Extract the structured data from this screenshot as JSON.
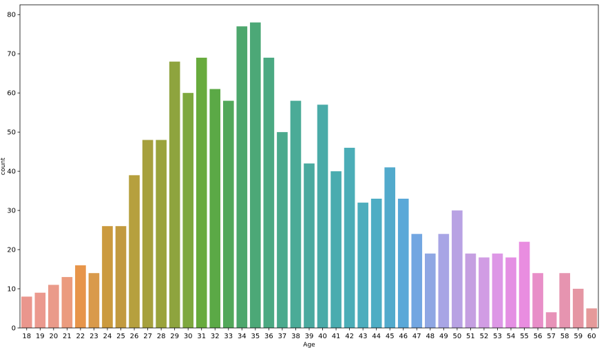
{
  "chart_data": {
    "type": "bar",
    "xlabel": "Age",
    "ylabel": "count",
    "ylim": [
      0,
      82.5
    ],
    "yticks": [
      0,
      10,
      20,
      30,
      40,
      50,
      60,
      70,
      80
    ],
    "grid": false,
    "legend": "none",
    "categories": [
      "18",
      "19",
      "20",
      "21",
      "22",
      "23",
      "24",
      "25",
      "26",
      "27",
      "28",
      "29",
      "30",
      "31",
      "32",
      "33",
      "34",
      "35",
      "36",
      "37",
      "38",
      "39",
      "40",
      "41",
      "42",
      "43",
      "44",
      "45",
      "46",
      "47",
      "48",
      "49",
      "50",
      "51",
      "52",
      "53",
      "54",
      "55",
      "56",
      "57",
      "58",
      "59",
      "60"
    ],
    "values": [
      8,
      9,
      11,
      13,
      16,
      14,
      26,
      26,
      39,
      48,
      48,
      68,
      60,
      69,
      61,
      58,
      77,
      78,
      69,
      50,
      58,
      42,
      57,
      40,
      46,
      32,
      33,
      41,
      33,
      24,
      19,
      24,
      30,
      19,
      18,
      19,
      18,
      22,
      14,
      4,
      14,
      10,
      5
    ],
    "colors": [
      "#ea968d",
      "#eb998e",
      "#ea9a8a",
      "#eb9b7e",
      "#e7954a",
      "#d99a4b",
      "#cb9a3e",
      "#c29a3f",
      "#b6a03e",
      "#a6a03d",
      "#9aa33c",
      "#8ea43e",
      "#7ea83e",
      "#68ab3d",
      "#5ba946",
      "#52a85a",
      "#4da76d",
      "#4ca877",
      "#4ba982",
      "#4baa8d",
      "#4bab97",
      "#4aaa9f",
      "#4aaba8",
      "#4aacaf",
      "#4badb7",
      "#4dadbd",
      "#4eadc4",
      "#52aacc",
      "#5aa8d8",
      "#72a6e1",
      "#8fa7e3",
      "#a8a5e5",
      "#b8a2e3",
      "#c59fe1",
      "#d19ce4",
      "#dd97e6",
      "#e48fe3",
      "#e98de0",
      "#e88ec8",
      "#e792b8",
      "#e694b0",
      "#e596a3",
      "#e59a9a"
    ]
  }
}
